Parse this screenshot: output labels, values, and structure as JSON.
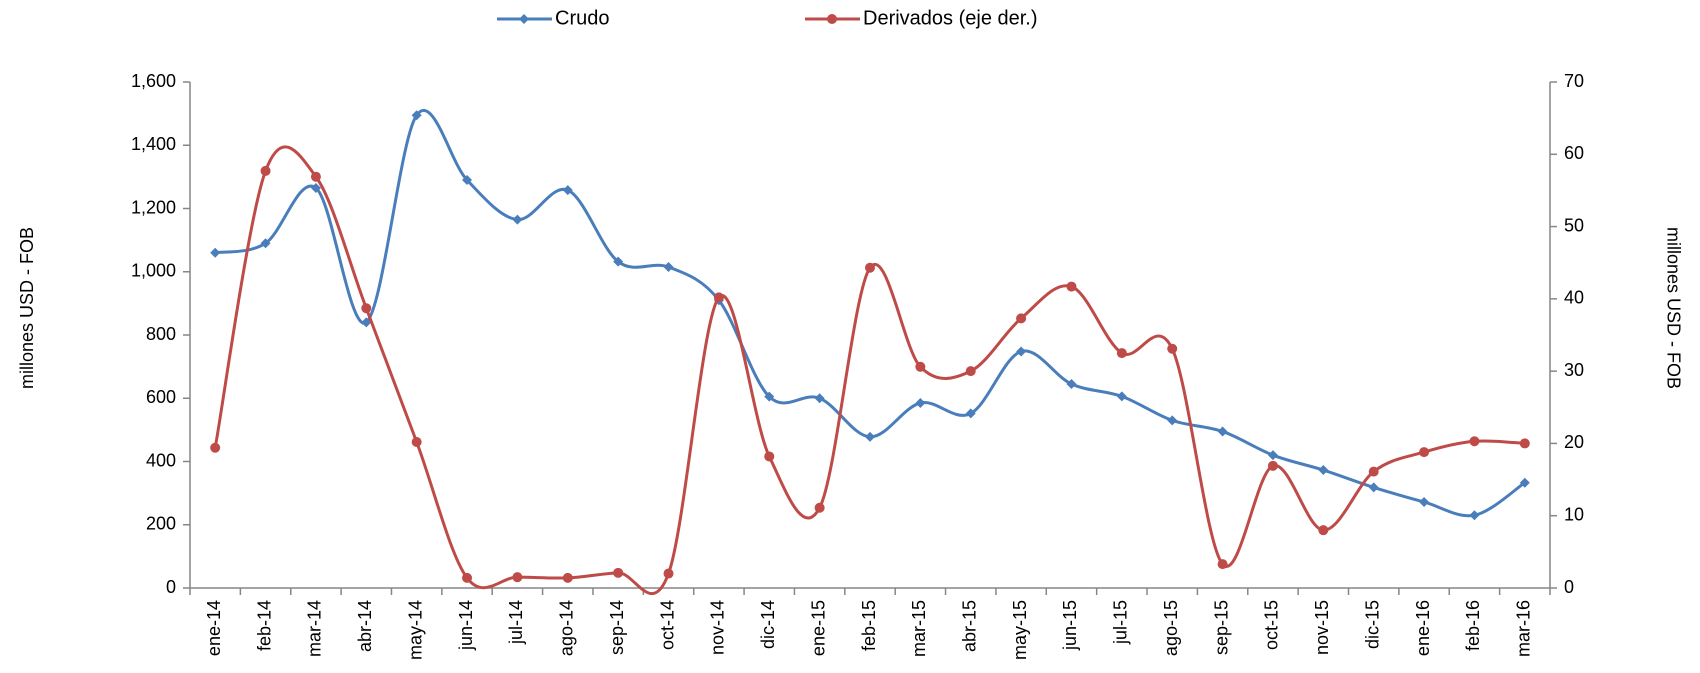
{
  "chart_data": {
    "type": "line",
    "categories": [
      "ene-14",
      "feb-14",
      "mar-14",
      "abr-14",
      "may-14",
      "jun-14",
      "jul-14",
      "ago-14",
      "sep-14",
      "oct-14",
      "nov-14",
      "dic-14",
      "ene-15",
      "feb-15",
      "mar-15",
      "abr-15",
      "may-15",
      "jun-15",
      "jul-15",
      "ago-15",
      "sep-15",
      "oct-15",
      "nov-15",
      "dic-15",
      "ene-16",
      "feb-16",
      "mar-16"
    ],
    "series": [
      {
        "name": "Crudo",
        "color": "#4a7ebb",
        "axis": "y",
        "values": [
          1060,
          1090,
          1265,
          840,
          1495,
          1290,
          1165,
          1258,
          1032,
          1015,
          910,
          605,
          600,
          478,
          585,
          552,
          748,
          645,
          606,
          530,
          495,
          420,
          373,
          318,
          272,
          230,
          333
        ]
      },
      {
        "name": "Derivados (eje der.)",
        "color": "#be4b48",
        "axis": "y2",
        "values": [
          19.4,
          57.7,
          56.9,
          38.7,
          20.2,
          1.4,
          1.5,
          1.4,
          2.1,
          2.0,
          40.2,
          18.2,
          11.1,
          44.3,
          30.6,
          30.0,
          37.3,
          41.7,
          32.5,
          33.1,
          3.3,
          16.9,
          8.0,
          16.1,
          18.8,
          20.3,
          20.0
        ]
      }
    ],
    "ylabel": "millones USD - FOB",
    "y2label": "millones USD - FOB",
    "ylim": [
      0,
      1600
    ],
    "yticks": [
      0,
      200,
      400,
      600,
      800,
      {
        "value": 1000,
        "label": "1,000"
      },
      {
        "value": 1200,
        "label": "1,200"
      },
      {
        "value": 1400,
        "label": "1,400"
      },
      {
        "value": 1600,
        "label": "1,600"
      }
    ],
    "y2lim": [
      0,
      70
    ],
    "y2ticks": [
      0,
      10,
      20,
      30,
      40,
      50,
      60,
      70
    ],
    "grid": false,
    "smooth": true,
    "legend": "top"
  }
}
